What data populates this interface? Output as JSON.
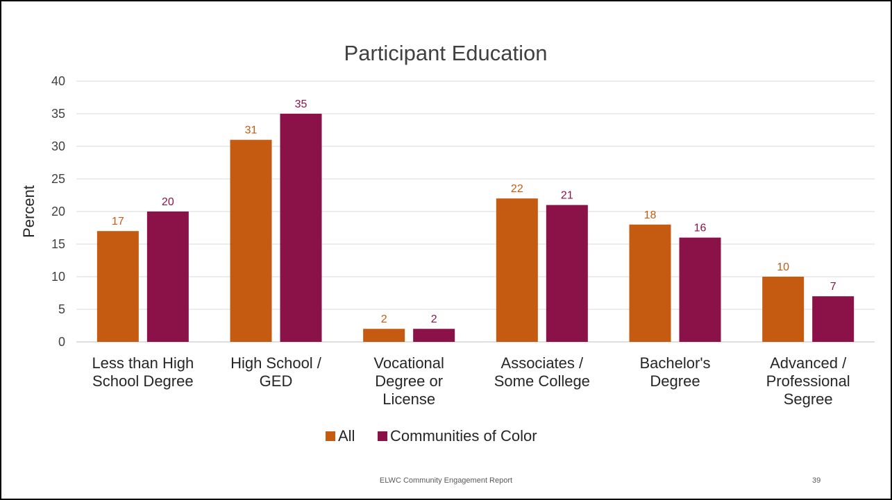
{
  "chart_data": {
    "type": "bar",
    "title": "Participant Education",
    "ylabel": "Percent",
    "xlabel": "",
    "ylim": [
      0,
      40
    ],
    "yticks": [
      0,
      5,
      10,
      15,
      20,
      25,
      30,
      35,
      40
    ],
    "grid": true,
    "legend_position": "bottom",
    "categories": [
      [
        "Less than High",
        "School Degree"
      ],
      [
        "High School /",
        "GED"
      ],
      [
        "Vocational",
        "Degree or",
        "License"
      ],
      [
        "Associates /",
        "Some College"
      ],
      [
        "Bachelor's",
        "Degree"
      ],
      [
        "Advanced /",
        "Professional",
        "Segree"
      ]
    ],
    "series": [
      {
        "name": "All",
        "color": "#C55A11",
        "values": [
          17,
          31,
          2,
          22,
          18,
          10
        ]
      },
      {
        "name": "Communities of Color",
        "color": "#8B1248",
        "values": [
          20,
          35,
          2,
          21,
          16,
          7
        ]
      }
    ]
  },
  "footer": {
    "text": "ELWC Community Engagement Report",
    "page_number": "39"
  }
}
